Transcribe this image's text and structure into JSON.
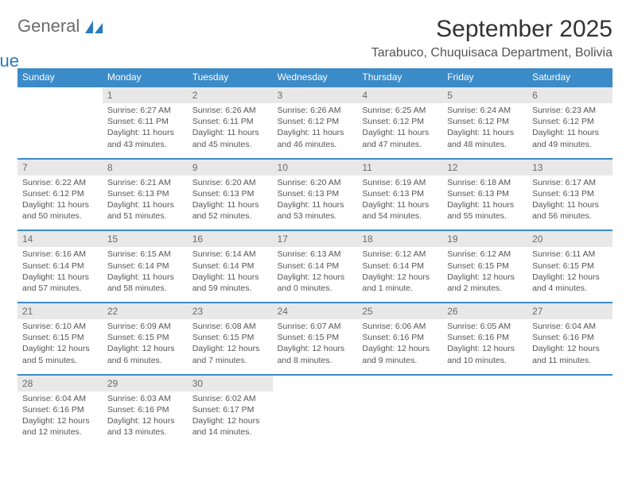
{
  "logo": {
    "part1": "General",
    "part2": "Blue"
  },
  "title": "September 2025",
  "location": "Tarabuco, Chuquisaca Department, Bolivia",
  "colors": {
    "header_bg": "#3b8bc8",
    "header_fg": "#ffffff",
    "daynum_bg": "#e8e8e8",
    "daynum_fg": "#6b6b6b",
    "row_border": "#3b8bc8",
    "text": "#555555",
    "logo_gray": "#6b6b6b",
    "logo_blue": "#2b7bbf"
  },
  "weekdays": [
    "Sunday",
    "Monday",
    "Tuesday",
    "Wednesday",
    "Thursday",
    "Friday",
    "Saturday"
  ],
  "weeks": [
    {
      "nums": [
        "",
        "1",
        "2",
        "3",
        "4",
        "5",
        "6"
      ],
      "cells": [
        {
          "empty": true
        },
        {
          "sunrise": "Sunrise: 6:27 AM",
          "sunset": "Sunset: 6:11 PM",
          "day1": "Daylight: 11 hours",
          "day2": "and 43 minutes."
        },
        {
          "sunrise": "Sunrise: 6:26 AM",
          "sunset": "Sunset: 6:11 PM",
          "day1": "Daylight: 11 hours",
          "day2": "and 45 minutes."
        },
        {
          "sunrise": "Sunrise: 6:26 AM",
          "sunset": "Sunset: 6:12 PM",
          "day1": "Daylight: 11 hours",
          "day2": "and 46 minutes."
        },
        {
          "sunrise": "Sunrise: 6:25 AM",
          "sunset": "Sunset: 6:12 PM",
          "day1": "Daylight: 11 hours",
          "day2": "and 47 minutes."
        },
        {
          "sunrise": "Sunrise: 6:24 AM",
          "sunset": "Sunset: 6:12 PM",
          "day1": "Daylight: 11 hours",
          "day2": "and 48 minutes."
        },
        {
          "sunrise": "Sunrise: 6:23 AM",
          "sunset": "Sunset: 6:12 PM",
          "day1": "Daylight: 11 hours",
          "day2": "and 49 minutes."
        }
      ]
    },
    {
      "nums": [
        "7",
        "8",
        "9",
        "10",
        "11",
        "12",
        "13"
      ],
      "cells": [
        {
          "sunrise": "Sunrise: 6:22 AM",
          "sunset": "Sunset: 6:12 PM",
          "day1": "Daylight: 11 hours",
          "day2": "and 50 minutes."
        },
        {
          "sunrise": "Sunrise: 6:21 AM",
          "sunset": "Sunset: 6:13 PM",
          "day1": "Daylight: 11 hours",
          "day2": "and 51 minutes."
        },
        {
          "sunrise": "Sunrise: 6:20 AM",
          "sunset": "Sunset: 6:13 PM",
          "day1": "Daylight: 11 hours",
          "day2": "and 52 minutes."
        },
        {
          "sunrise": "Sunrise: 6:20 AM",
          "sunset": "Sunset: 6:13 PM",
          "day1": "Daylight: 11 hours",
          "day2": "and 53 minutes."
        },
        {
          "sunrise": "Sunrise: 6:19 AM",
          "sunset": "Sunset: 6:13 PM",
          "day1": "Daylight: 11 hours",
          "day2": "and 54 minutes."
        },
        {
          "sunrise": "Sunrise: 6:18 AM",
          "sunset": "Sunset: 6:13 PM",
          "day1": "Daylight: 11 hours",
          "day2": "and 55 minutes."
        },
        {
          "sunrise": "Sunrise: 6:17 AM",
          "sunset": "Sunset: 6:13 PM",
          "day1": "Daylight: 11 hours",
          "day2": "and 56 minutes."
        }
      ]
    },
    {
      "nums": [
        "14",
        "15",
        "16",
        "17",
        "18",
        "19",
        "20"
      ],
      "cells": [
        {
          "sunrise": "Sunrise: 6:16 AM",
          "sunset": "Sunset: 6:14 PM",
          "day1": "Daylight: 11 hours",
          "day2": "and 57 minutes."
        },
        {
          "sunrise": "Sunrise: 6:15 AM",
          "sunset": "Sunset: 6:14 PM",
          "day1": "Daylight: 11 hours",
          "day2": "and 58 minutes."
        },
        {
          "sunrise": "Sunrise: 6:14 AM",
          "sunset": "Sunset: 6:14 PM",
          "day1": "Daylight: 11 hours",
          "day2": "and 59 minutes."
        },
        {
          "sunrise": "Sunrise: 6:13 AM",
          "sunset": "Sunset: 6:14 PM",
          "day1": "Daylight: 12 hours",
          "day2": "and 0 minutes."
        },
        {
          "sunrise": "Sunrise: 6:12 AM",
          "sunset": "Sunset: 6:14 PM",
          "day1": "Daylight: 12 hours",
          "day2": "and 1 minute."
        },
        {
          "sunrise": "Sunrise: 6:12 AM",
          "sunset": "Sunset: 6:15 PM",
          "day1": "Daylight: 12 hours",
          "day2": "and 2 minutes."
        },
        {
          "sunrise": "Sunrise: 6:11 AM",
          "sunset": "Sunset: 6:15 PM",
          "day1": "Daylight: 12 hours",
          "day2": "and 4 minutes."
        }
      ]
    },
    {
      "nums": [
        "21",
        "22",
        "23",
        "24",
        "25",
        "26",
        "27"
      ],
      "cells": [
        {
          "sunrise": "Sunrise: 6:10 AM",
          "sunset": "Sunset: 6:15 PM",
          "day1": "Daylight: 12 hours",
          "day2": "and 5 minutes."
        },
        {
          "sunrise": "Sunrise: 6:09 AM",
          "sunset": "Sunset: 6:15 PM",
          "day1": "Daylight: 12 hours",
          "day2": "and 6 minutes."
        },
        {
          "sunrise": "Sunrise: 6:08 AM",
          "sunset": "Sunset: 6:15 PM",
          "day1": "Daylight: 12 hours",
          "day2": "and 7 minutes."
        },
        {
          "sunrise": "Sunrise: 6:07 AM",
          "sunset": "Sunset: 6:15 PM",
          "day1": "Daylight: 12 hours",
          "day2": "and 8 minutes."
        },
        {
          "sunrise": "Sunrise: 6:06 AM",
          "sunset": "Sunset: 6:16 PM",
          "day1": "Daylight: 12 hours",
          "day2": "and 9 minutes."
        },
        {
          "sunrise": "Sunrise: 6:05 AM",
          "sunset": "Sunset: 6:16 PM",
          "day1": "Daylight: 12 hours",
          "day2": "and 10 minutes."
        },
        {
          "sunrise": "Sunrise: 6:04 AM",
          "sunset": "Sunset: 6:16 PM",
          "day1": "Daylight: 12 hours",
          "day2": "and 11 minutes."
        }
      ]
    },
    {
      "nums": [
        "28",
        "29",
        "30",
        "",
        "",
        "",
        ""
      ],
      "cells": [
        {
          "sunrise": "Sunrise: 6:04 AM",
          "sunset": "Sunset: 6:16 PM",
          "day1": "Daylight: 12 hours",
          "day2": "and 12 minutes."
        },
        {
          "sunrise": "Sunrise: 6:03 AM",
          "sunset": "Sunset: 6:16 PM",
          "day1": "Daylight: 12 hours",
          "day2": "and 13 minutes."
        },
        {
          "sunrise": "Sunrise: 6:02 AM",
          "sunset": "Sunset: 6:17 PM",
          "day1": "Daylight: 12 hours",
          "day2": "and 14 minutes."
        },
        {
          "empty": true
        },
        {
          "empty": true
        },
        {
          "empty": true
        },
        {
          "empty": true
        }
      ]
    }
  ]
}
